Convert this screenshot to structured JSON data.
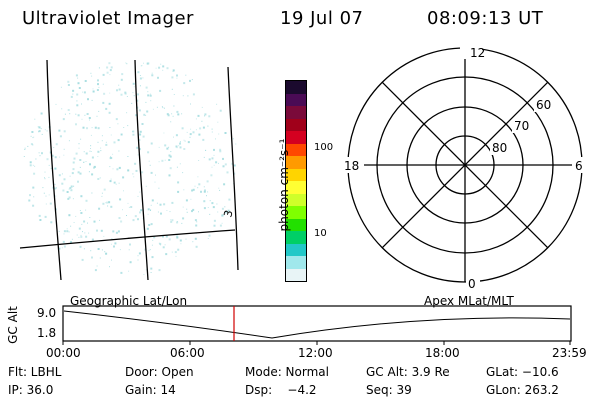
{
  "header": {
    "title": "Ultraviolet Imager",
    "date": "19 Jul 07",
    "time": "08:09:13 UT"
  },
  "image_panel": {
    "grid_label": "3",
    "noise_color": "#a6dde0"
  },
  "colorbar": {
    "unit": "photon cm⁻²s⁻¹",
    "ticks": [
      "100",
      "10"
    ],
    "colors": [
      "#1b0a2e",
      "#4a0b55",
      "#7a0a3a",
      "#a0001a",
      "#d40020",
      "#ff4800",
      "#ff9a00",
      "#ffd400",
      "#ffff33",
      "#cfff2a",
      "#7fff00",
      "#22e000",
      "#00cf66",
      "#22c8c8",
      "#a0e8ec",
      "#e8f4f6"
    ]
  },
  "polar_plot": {
    "hour_labels": {
      "top": "12",
      "left": "18",
      "right": "6",
      "bottom": "0"
    },
    "lat_labels": [
      "60",
      "70",
      "80"
    ]
  },
  "timeline": {
    "ylabel": "GC Alt",
    "y_ticks": [
      "9.0",
      "1.8"
    ],
    "left_label": "Geographic Lat/Lon",
    "right_label": "Apex  MLat/MLT",
    "x_ticks": [
      "00:00",
      "06:00",
      "12:00",
      "18:00",
      "23:59"
    ],
    "marker_color": "#d00000"
  },
  "info": {
    "row1": {
      "flt": "Flt: LBHL",
      "door": "Door: Open",
      "mode": "Mode: Normal",
      "gcalt": "GC Alt: 3.9 Re",
      "glat": "GLat: −10.6"
    },
    "row2": {
      "ip": "IP: 36.0",
      "gain": "Gain: 14",
      "dsp": "Dsp:    −4.2",
      "seq": "Seq: 39",
      "glon": "GLon: 263.2"
    }
  }
}
